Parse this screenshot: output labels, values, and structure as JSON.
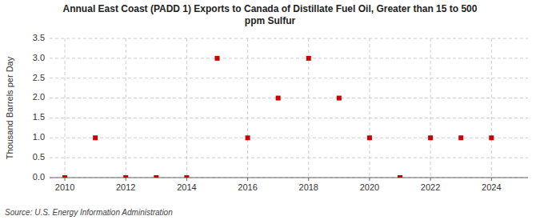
{
  "chart_data": {
    "type": "scatter",
    "title": "Annual East Coast (PADD 1) Exports to Canada of Distillate Fuel Oil, Greater than 15 to 500\nppm Sulfur",
    "ylabel": "Thousand Barrels per Day",
    "annotations": [
      "Source: U.S. Energy Information Administration"
    ],
    "x": [
      2010,
      2011,
      2012,
      2013,
      2014,
      2015,
      2016,
      2017,
      2018,
      2019,
      2020,
      2021,
      2022,
      2023,
      2024
    ],
    "values": [
      0.0,
      1.0,
      0.0,
      0.0,
      0.0,
      3.0,
      1.0,
      2.0,
      3.0,
      2.0,
      1.0,
      0.0,
      1.0,
      1.0,
      1.0
    ],
    "color": "#cc0000",
    "marker": "square",
    "xlim": [
      2009.5,
      2025.2
    ],
    "xticks": [
      2010,
      2012,
      2014,
      2016,
      2018,
      2020,
      2022,
      2024
    ],
    "ylim": [
      0.0,
      3.5
    ],
    "yticks": [
      {
        "value": 0,
        "label": "0.0"
      },
      0.5,
      {
        "value": 1,
        "label": "1.0"
      },
      1.5,
      {
        "value": 2,
        "label": "2.0"
      },
      2.5,
      {
        "value": 3,
        "label": "3.0"
      },
      3.5
    ],
    "grid": true
  }
}
